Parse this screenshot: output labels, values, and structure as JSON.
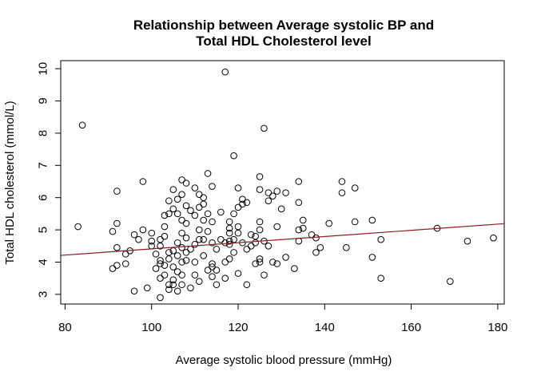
{
  "chart_data": {
    "type": "scatter",
    "title": [
      "Relationship between Average systolic BP and",
      "Total HDL Cholesterol level"
    ],
    "xlabel": "Average systolic blood pressure (mmHg)",
    "ylabel": "Total HDL cholesterol (mmol/L)",
    "xlim": [
      79,
      181.5
    ],
    "ylim": [
      2.7,
      10.25
    ],
    "xticks": [
      80,
      100,
      120,
      140,
      160,
      180
    ],
    "yticks": [
      3,
      4,
      5,
      6,
      7,
      8,
      9,
      10
    ],
    "grid": false,
    "regression_line": {
      "intercept": 3.45,
      "slope": 0.0096,
      "color": "#8b1a1a"
    },
    "points": [
      [
        83,
        5.1
      ],
      [
        84,
        8.25
      ],
      [
        91,
        3.8
      ],
      [
        91,
        4.95
      ],
      [
        92,
        6.2
      ],
      [
        92,
        5.2
      ],
      [
        92,
        4.45
      ],
      [
        92,
        3.9
      ],
      [
        94,
        4.25
      ],
      [
        94,
        3.95
      ],
      [
        95,
        4.35
      ],
      [
        96,
        4.85
      ],
      [
        96,
        3.1
      ],
      [
        97,
        4.7
      ],
      [
        98,
        6.5
      ],
      [
        98,
        5.0
      ],
      [
        99,
        3.2
      ],
      [
        100,
        4.9
      ],
      [
        100,
        4.65
      ],
      [
        100,
        4.5
      ],
      [
        101,
        4.25
      ],
      [
        101,
        3.8
      ],
      [
        102,
        4.7
      ],
      [
        102,
        4.5
      ],
      [
        102,
        4.05
      ],
      [
        102,
        3.95
      ],
      [
        102,
        3.5
      ],
      [
        102,
        2.9
      ],
      [
        103,
        5.45
      ],
      [
        103,
        5.1
      ],
      [
        103,
        4.8
      ],
      [
        103,
        3.9
      ],
      [
        103,
        3.6
      ],
      [
        104,
        5.9
      ],
      [
        104,
        5.5
      ],
      [
        104,
        4.3
      ],
      [
        104,
        4.1
      ],
      [
        104,
        3.3
      ],
      [
        104,
        3.15
      ],
      [
        105,
        6.25
      ],
      [
        105,
        5.65
      ],
      [
        105,
        4.35
      ],
      [
        105,
        3.85
      ],
      [
        105,
        3.45
      ],
      [
        105,
        3.3
      ],
      [
        106,
        5.95
      ],
      [
        106,
        5.5
      ],
      [
        106,
        4.6
      ],
      [
        106,
        4.2
      ],
      [
        106,
        3.7
      ],
      [
        106,
        3.1
      ],
      [
        107,
        6.55
      ],
      [
        107,
        6.1
      ],
      [
        107,
        5.3
      ],
      [
        107,
        4.9
      ],
      [
        107,
        4.45
      ],
      [
        107,
        4.0
      ],
      [
        107,
        3.6
      ],
      [
        107,
        3.3
      ],
      [
        108,
        6.45
      ],
      [
        108,
        5.75
      ],
      [
        108,
        5.2
      ],
      [
        108,
        4.75
      ],
      [
        108,
        4.3
      ],
      [
        108,
        4.05
      ],
      [
        109,
        5.6
      ],
      [
        109,
        4.4
      ],
      [
        109,
        3.2
      ],
      [
        110,
        6.3
      ],
      [
        110,
        5.45
      ],
      [
        110,
        4.55
      ],
      [
        110,
        4.0
      ],
      [
        110,
        3.6
      ],
      [
        111,
        6.1
      ],
      [
        111,
        5.7
      ],
      [
        111,
        5.0
      ],
      [
        111,
        4.7
      ],
      [
        111,
        3.4
      ],
      [
        112,
        6.0
      ],
      [
        112,
        5.8
      ],
      [
        112,
        5.3
      ],
      [
        112,
        4.7
      ],
      [
        112,
        4.2
      ],
      [
        113,
        6.75
      ],
      [
        113,
        5.5
      ],
      [
        113,
        4.95
      ],
      [
        113,
        3.75
      ],
      [
        114,
        6.35
      ],
      [
        114,
        5.25
      ],
      [
        114,
        4.6
      ],
      [
        114,
        3.95
      ],
      [
        114,
        3.85
      ],
      [
        114,
        3.55
      ],
      [
        115,
        4.4
      ],
      [
        115,
        3.75
      ],
      [
        115,
        3.3
      ],
      [
        116,
        5.55
      ],
      [
        116,
        4.7
      ],
      [
        117,
        9.9
      ],
      [
        117,
        4.6
      ],
      [
        117,
        4.0
      ],
      [
        117,
        3.5
      ],
      [
        118,
        5.25
      ],
      [
        118,
        5.05
      ],
      [
        118,
        4.9
      ],
      [
        118,
        4.65
      ],
      [
        118,
        4.55
      ],
      [
        118,
        4.1
      ],
      [
        119,
        7.3
      ],
      [
        119,
        5.5
      ],
      [
        119,
        4.7
      ],
      [
        119,
        4.3
      ],
      [
        120,
        6.3
      ],
      [
        120,
        5.7
      ],
      [
        120,
        5.1
      ],
      [
        120,
        4.9
      ],
      [
        120,
        3.65
      ],
      [
        121,
        5.95
      ],
      [
        121,
        5.8
      ],
      [
        121,
        4.6
      ],
      [
        122,
        5.85
      ],
      [
        122,
        4.4
      ],
      [
        122,
        3.3
      ],
      [
        123,
        4.85
      ],
      [
        123,
        4.5
      ],
      [
        124,
        4.8
      ],
      [
        124,
        4.6
      ],
      [
        124,
        3.95
      ],
      [
        125,
        6.65
      ],
      [
        125,
        6.25
      ],
      [
        125,
        5.25
      ],
      [
        125,
        5.0
      ],
      [
        125,
        4.1
      ],
      [
        125,
        4.0
      ],
      [
        126,
        8.15
      ],
      [
        126,
        4.65
      ],
      [
        126,
        3.6
      ],
      [
        127,
        6.15
      ],
      [
        127,
        5.9
      ],
      [
        127,
        4.5
      ],
      [
        128,
        6.05
      ],
      [
        128,
        4.0
      ],
      [
        129,
        6.2
      ],
      [
        129,
        5.1
      ],
      [
        129,
        3.95
      ],
      [
        130,
        5.65
      ],
      [
        131,
        6.15
      ],
      [
        131,
        4.15
      ],
      [
        133,
        3.8
      ],
      [
        134,
        6.5
      ],
      [
        134,
        5.85
      ],
      [
        134,
        5.0
      ],
      [
        134,
        4.65
      ],
      [
        135,
        5.3
      ],
      [
        135,
        5.05
      ],
      [
        137,
        4.85
      ],
      [
        138,
        4.75
      ],
      [
        138,
        4.3
      ],
      [
        139,
        4.45
      ],
      [
        141,
        5.2
      ],
      [
        144,
        6.5
      ],
      [
        144,
        6.15
      ],
      [
        145,
        4.45
      ],
      [
        147,
        6.3
      ],
      [
        147,
        5.25
      ],
      [
        151,
        5.3
      ],
      [
        151,
        4.15
      ],
      [
        153,
        4.7
      ],
      [
        153,
        3.5
      ],
      [
        166,
        5.05
      ],
      [
        169,
        3.4
      ],
      [
        173,
        4.65
      ],
      [
        179,
        4.75
      ]
    ]
  }
}
